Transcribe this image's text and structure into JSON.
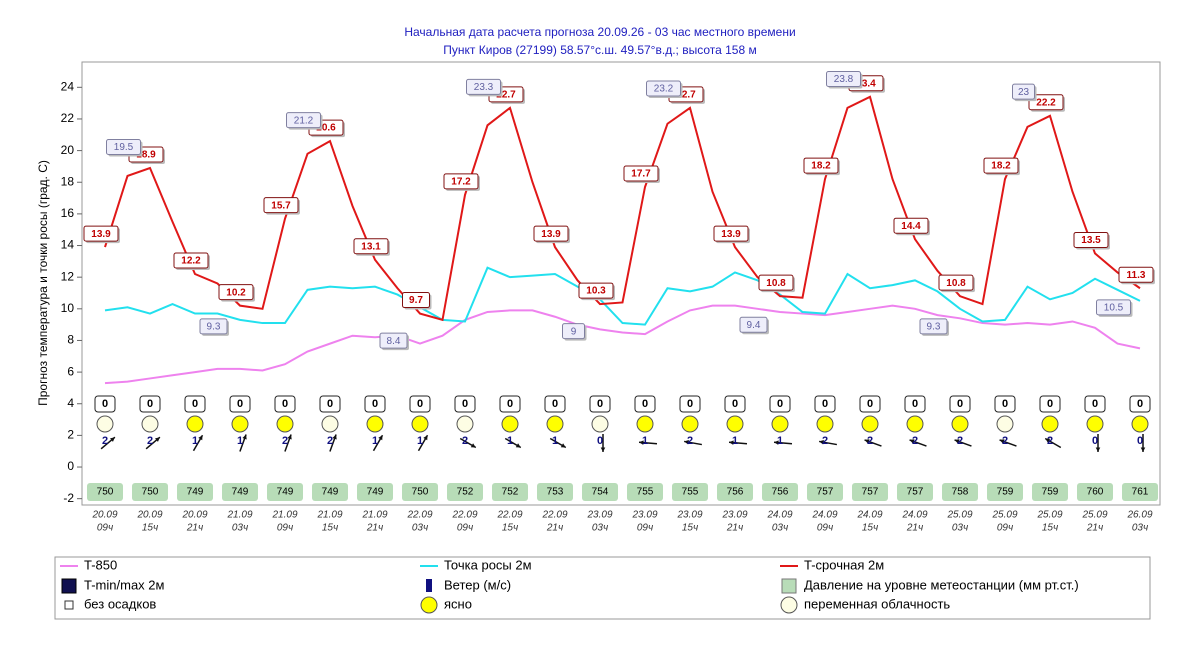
{
  "chart_data": {
    "type": "line",
    "title": "Начальная дата расчета прогноза 20.09.26 - 03 час местного времени",
    "subtitle": "Пункт  Киров (27199)   58.57°с.ш.   49.57°в.д.; высота 158 м",
    "y_label": "Прогноз температура и точки росы (град. С)",
    "ylim": [
      -2.4,
      25.6
    ],
    "yticks": [
      -2,
      0,
      2,
      4,
      6,
      8,
      10,
      12,
      14,
      16,
      18,
      20,
      22,
      24
    ],
    "grid": false,
    "categories": [
      [
        "20.09",
        "09ч"
      ],
      null,
      [
        "20.09",
        "15ч"
      ],
      null,
      [
        "20.09",
        "21ч"
      ],
      null,
      [
        "21.09",
        "03ч"
      ],
      null,
      [
        "21.09",
        "09ч"
      ],
      null,
      [
        "21.09",
        "15ч"
      ],
      null,
      [
        "21.09",
        "21ч"
      ],
      null,
      [
        "22.09",
        "03ч"
      ],
      null,
      [
        "22.09",
        "09ч"
      ],
      null,
      [
        "22.09",
        "15ч"
      ],
      null,
      [
        "22.09",
        "21ч"
      ],
      null,
      [
        "23.09",
        "03ч"
      ],
      null,
      [
        "23.09",
        "09ч"
      ],
      null,
      [
        "23.09",
        "15ч"
      ],
      null,
      [
        "23.09",
        "21ч"
      ],
      null,
      [
        "24.09",
        "03ч"
      ],
      null,
      [
        "24.09",
        "09ч"
      ],
      null,
      [
        "24.09",
        "15ч"
      ],
      null,
      [
        "24.09",
        "21ч"
      ],
      null,
      [
        "25.09",
        "03ч"
      ],
      null,
      [
        "25.09",
        "09ч"
      ],
      null,
      [
        "25.09",
        "15ч"
      ],
      null,
      [
        "25.09",
        "21ч"
      ],
      null,
      [
        "26.09",
        "03ч"
      ]
    ],
    "series": [
      {
        "name": "T-850",
        "color": "#ee82ee",
        "values": [
          5.3,
          5.4,
          5.6,
          5.8,
          6.0,
          6.2,
          6.2,
          6.1,
          6.5,
          7.3,
          7.8,
          8.3,
          8.2,
          8.3,
          7.8,
          8.3,
          9.3,
          9.8,
          9.9,
          9.9,
          9.5,
          9.0,
          8.7,
          8.5,
          8.4,
          9.2,
          9.9,
          10.2,
          10.2,
          10.0,
          9.8,
          9.7,
          9.6,
          9.8,
          10.0,
          10.2,
          10.0,
          9.6,
          9.4,
          9.1,
          9.0,
          9.1,
          9.0,
          9.2,
          8.8,
          7.8,
          7.5
        ]
      },
      {
        "name": "Точка росы 2м",
        "color": "#22e0ee",
        "values": [
          9.9,
          10.1,
          9.7,
          10.3,
          9.7,
          9.7,
          9.3,
          9.1,
          9.1,
          11.2,
          11.4,
          11.3,
          11.4,
          10.9,
          10.1,
          9.3,
          9.2,
          12.6,
          12.0,
          12.1,
          12.2,
          11.4,
          10.6,
          9.1,
          9.0,
          11.3,
          11.1,
          11.4,
          12.3,
          11.8,
          10.9,
          9.8,
          9.7,
          12.2,
          11.3,
          11.5,
          11.8,
          11.1,
          10.0,
          9.2,
          9.3,
          11.4,
          10.6,
          11.0,
          11.9,
          11.2,
          10.5
        ]
      },
      {
        "name": "T-срочная 2м",
        "color": "#e01818",
        "data_labels": true,
        "values": [
          13.9,
          18.4,
          18.9,
          15.5,
          12.2,
          11.6,
          10.2,
          10.0,
          15.7,
          19.8,
          20.6,
          16.5,
          13.1,
          11.3,
          9.7,
          9.3,
          17.2,
          21.6,
          22.7,
          18.0,
          13.9,
          11.8,
          10.3,
          10.4,
          17.7,
          21.7,
          22.7,
          17.4,
          13.9,
          12.0,
          10.8,
          10.7,
          18.2,
          22.7,
          23.4,
          18.2,
          14.4,
          12.4,
          10.8,
          10.3,
          18.2,
          21.5,
          22.2,
          17.4,
          13.5,
          12.3,
          11.3
        ]
      },
      {
        "name": "T-min/max 2м",
        "color": "#101050",
        "data_labels": true,
        "values": [
          null,
          19.5,
          null,
          null,
          null,
          9.3,
          null,
          null,
          null,
          21.2,
          null,
          null,
          null,
          8.4,
          null,
          null,
          null,
          23.3,
          null,
          null,
          null,
          9,
          null,
          null,
          null,
          23.2,
          null,
          null,
          null,
          9.4,
          null,
          null,
          null,
          23.8,
          null,
          null,
          null,
          9.3,
          null,
          null,
          null,
          23,
          null,
          null,
          null,
          10.5,
          null
        ]
      }
    ],
    "wind": {
      "name": "Ветер (м/с)",
      "color": "#101080",
      "speed": [
        2,
        2,
        1,
        1,
        2,
        2,
        1,
        1,
        2,
        1,
        1,
        0,
        1,
        2,
        1,
        1,
        2,
        2,
        2,
        2,
        2,
        2,
        0,
        0
      ],
      "direction": [
        230,
        230,
        210,
        200,
        200,
        200,
        210,
        210,
        300,
        300,
        300,
        0,
        95,
        100,
        95,
        95,
        100,
        110,
        110,
        110,
        110,
        120,
        0,
        0
      ]
    },
    "pressure": {
      "name": "Давление на уровне метеостанции (мм рт.ст.)",
      "color": "#b8dcb8",
      "values": [
        750,
        750,
        749,
        749,
        749,
        749,
        749,
        750,
        752,
        752,
        753,
        754,
        755,
        755,
        756,
        756,
        757,
        757,
        757,
        758,
        759,
        759,
        760,
        761
      ]
    },
    "precipitation": {
      "name": "без осадков",
      "values": [
        0,
        0,
        0,
        0,
        0,
        0,
        0,
        0,
        0,
        0,
        0,
        0,
        0,
        0,
        0,
        0,
        0,
        0,
        0,
        0,
        0,
        0,
        0,
        0
      ]
    },
    "cloud": {
      "classes": [
        {
          "name": "ясно",
          "color": "#ffff00"
        },
        {
          "name": "переменная облачность",
          "color": "#fdfde4"
        }
      ],
      "values": [
        1,
        1,
        0,
        0,
        0,
        1,
        0,
        0,
        1,
        0,
        0,
        1,
        0,
        0,
        0,
        0,
        0,
        0,
        0,
        0,
        1,
        0,
        0,
        0
      ]
    }
  }
}
